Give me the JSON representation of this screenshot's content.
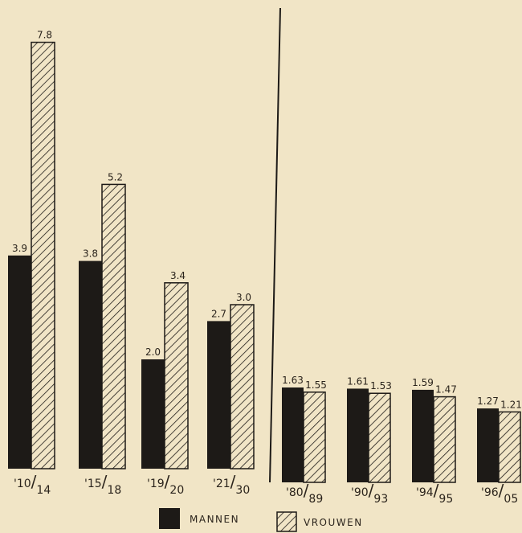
{
  "chart_data": {
    "type": "bar",
    "series": [
      {
        "name": "MANNEN",
        "pattern": "solid",
        "color": "#1d1a17"
      },
      {
        "name": "VROUWEN",
        "pattern": "hatched",
        "color": "#1d1a17"
      }
    ],
    "left_group": {
      "categories": [
        "'10/14",
        "'15/18",
        "'19/20",
        "'21/30"
      ],
      "mannen": [
        3.9,
        3.8,
        2.0,
        2.7
      ],
      "vrouwen": [
        7.8,
        5.2,
        3.4,
        3.0
      ],
      "ylim": [
        0,
        8
      ]
    },
    "right_group": {
      "categories": [
        "'80/89",
        "'90/93",
        "'94/95",
        "'96/05"
      ],
      "mannen": [
        1.63,
        1.61,
        1.59,
        1.27
      ],
      "vrouwen": [
        1.55,
        1.53,
        1.47,
        1.21
      ],
      "ylim": [
        0,
        1.63
      ]
    },
    "value_labels": {
      "left_mannen": [
        "3.9",
        "3.8",
        "2.0",
        "2.7"
      ],
      "left_vrouwen": [
        "7.8",
        "5.2",
        "3.4",
        "3.0"
      ],
      "right_mannen": [
        "1.63",
        "1.61",
        "1.59",
        "1.27"
      ],
      "right_vrouwen": [
        "1.55",
        "1.53",
        "1.47",
        "1.21"
      ]
    },
    "legend": {
      "mannen": "MANNEN",
      "vrouwen": "VROUWEN",
      "placement": "bottom"
    },
    "grid": false,
    "title": "",
    "xlabel": "",
    "ylabel": ""
  },
  "colors": {
    "background": "#f1e5c6",
    "ink": "#1d1a17"
  }
}
